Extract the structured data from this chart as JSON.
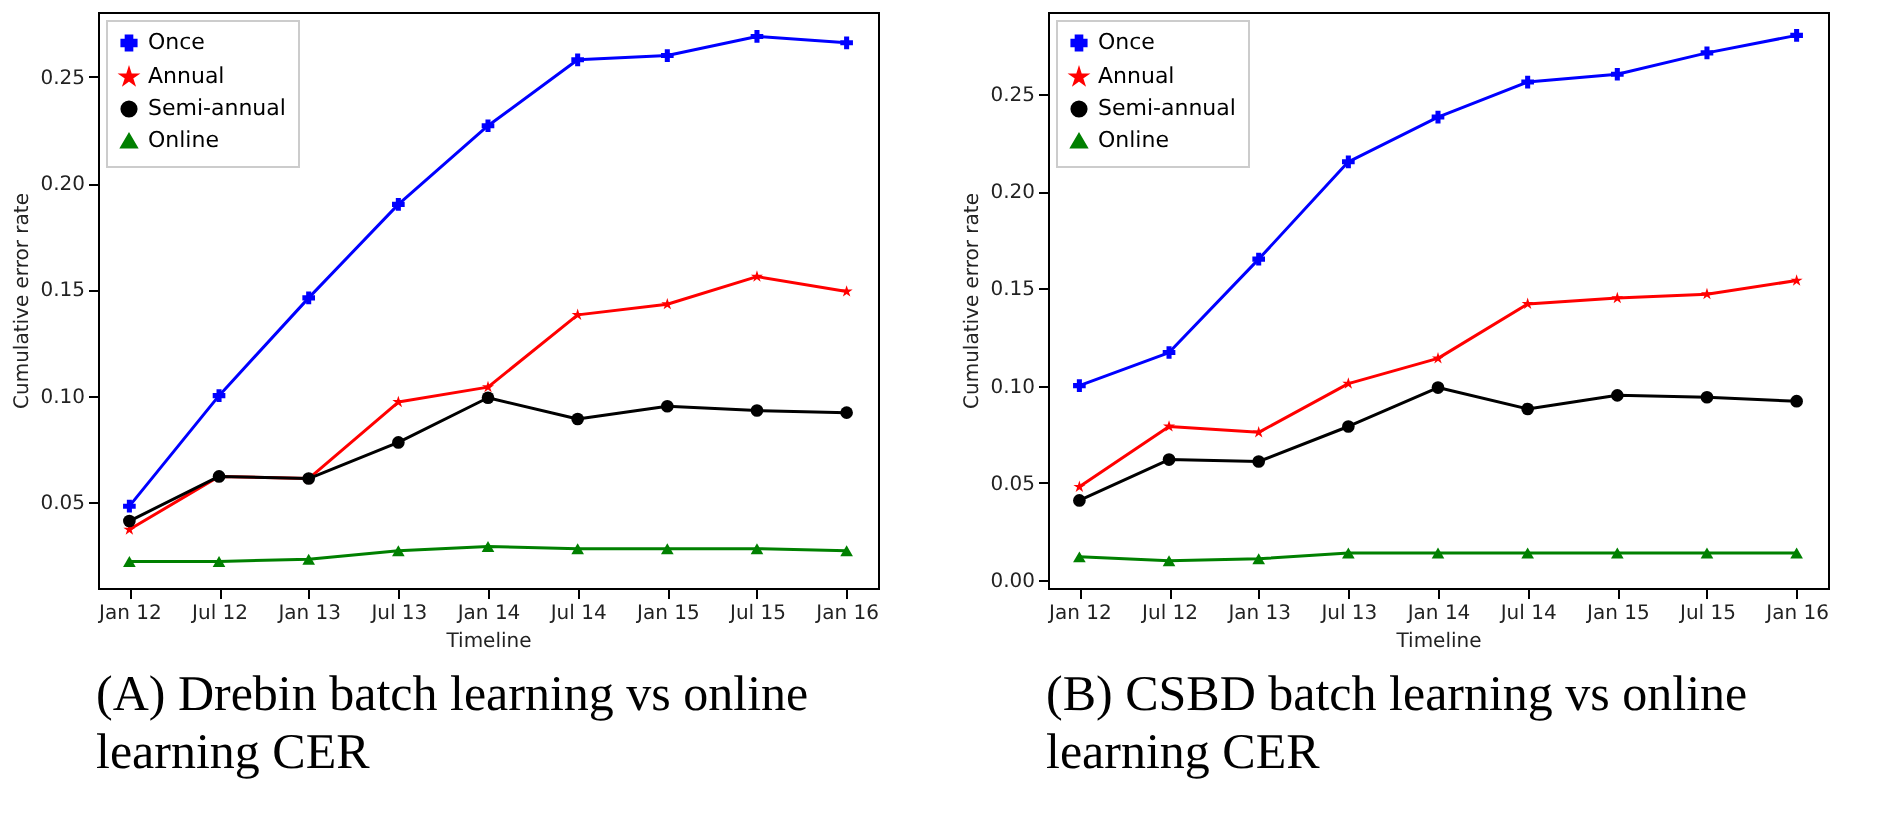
{
  "chart_data": [
    {
      "type": "line",
      "xlabel": "Timeline",
      "ylabel": "Cumulative error rate",
      "categories": [
        "Jan 12",
        "Jul 12",
        "Jan 13",
        "Jul 13",
        "Jan 14",
        "Jul 14",
        "Jan 15",
        "Jul 15",
        "Jan 16"
      ],
      "series": [
        {
          "name": "Once",
          "color": "#0000ff",
          "marker": "cross",
          "values": [
            0.048,
            0.1,
            0.146,
            0.19,
            0.227,
            0.258,
            0.26,
            0.269,
            0.266
          ]
        },
        {
          "name": "Annual",
          "color": "#ff0000",
          "marker": "star",
          "values": [
            0.037,
            0.062,
            0.061,
            0.097,
            0.104,
            0.138,
            0.143,
            0.156,
            0.149
          ]
        },
        {
          "name": "Semi-annual",
          "color": "#000000",
          "marker": "circle",
          "values": [
            0.041,
            0.062,
            0.061,
            0.078,
            0.099,
            0.089,
            0.095,
            0.093,
            0.092
          ]
        },
        {
          "name": "Online",
          "color": "#008000",
          "marker": "triangle",
          "values": [
            0.022,
            0.022,
            0.023,
            0.027,
            0.029,
            0.028,
            0.028,
            0.028,
            0.027
          ]
        }
      ],
      "ylim": [
        0.0095,
        0.2805
      ],
      "yticks": [
        0.05,
        {
          "value": 0.1,
          "label": "0.10"
        },
        0.15,
        {
          "value": 0.2,
          "label": "0.20"
        },
        0.25
      ],
      "grid": false,
      "legend": "top left",
      "annotations": [
        "(A) Drebin batch learning vs online learning CER"
      ]
    },
    {
      "type": "line",
      "xlabel": "Timeline",
      "ylabel": "Cumulative error rate",
      "categories": [
        "Jan 12",
        "Jul 12",
        "Jan 13",
        "Jul 13",
        "Jan 14",
        "Jul 14",
        "Jan 15",
        "Jul 15",
        "Jan 16"
      ],
      "series": [
        {
          "name": "Once",
          "color": "#0000ff",
          "marker": "cross",
          "values": [
            0.1,
            0.117,
            0.165,
            0.215,
            0.238,
            0.256,
            0.26,
            0.271,
            0.28
          ]
        },
        {
          "name": "Annual",
          "color": "#ff0000",
          "marker": "star",
          "values": [
            0.048,
            0.079,
            0.076,
            0.101,
            0.114,
            0.142,
            0.145,
            0.147,
            0.154
          ]
        },
        {
          "name": "Semi-annual",
          "color": "#000000",
          "marker": "circle",
          "values": [
            0.041,
            0.062,
            0.061,
            0.079,
            0.099,
            0.088,
            0.095,
            0.094,
            0.092
          ]
        },
        {
          "name": "Online",
          "color": "#008000",
          "marker": "triangle",
          "values": [
            0.012,
            0.01,
            0.011,
            0.014,
            0.014,
            0.014,
            0.014,
            0.014,
            0.014
          ]
        }
      ],
      "ylim": [
        -0.004,
        0.292
      ],
      "yticks": [
        {
          "value": 0,
          "label": "0.00"
        },
        0.05,
        {
          "value": 0.1,
          "label": "0.10"
        },
        0.15,
        {
          "value": 0.2,
          "label": "0.20"
        },
        0.25
      ],
      "grid": false,
      "legend": "top left",
      "annotations": [
        "(B) CSBD batch learning vs online learning CER"
      ]
    }
  ]
}
